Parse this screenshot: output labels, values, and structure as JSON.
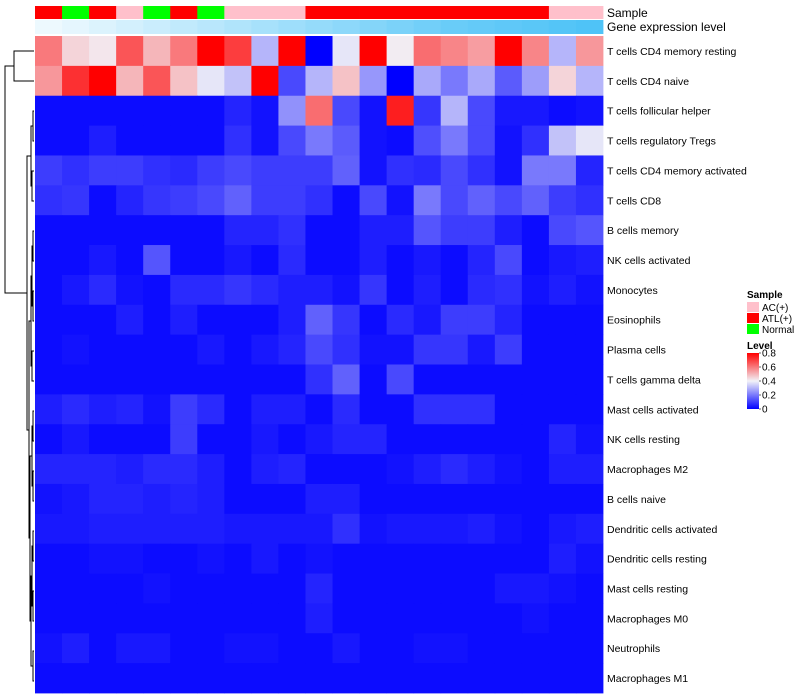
{
  "chart_data": {
    "type": "heatmap",
    "title": "",
    "annotations": [
      {
        "label": "Sample",
        "values": [
          "ATL(+)",
          "Normal",
          "ATL(+)",
          "AC(+)",
          "Normal",
          "ATL(+)",
          "Normal",
          "AC(+)",
          "AC(+)",
          "AC(+)",
          "ATL(+)",
          "ATL(+)",
          "ATL(+)",
          "ATL(+)",
          "ATL(+)",
          "ATL(+)",
          "ATL(+)",
          "ATL(+)",
          "ATL(+)",
          "AC(+)",
          "AC(+)"
        ]
      },
      {
        "label": "Gene expression level",
        "values": [
          0.1,
          0.15,
          0.2,
          0.25,
          0.3,
          0.35,
          0.4,
          0.45,
          0.5,
          0.55,
          0.6,
          0.65,
          0.7,
          0.75,
          0.8,
          0.85,
          0.88,
          0.91,
          0.94,
          0.97,
          1.0
        ]
      }
    ],
    "rows": [
      "T cells CD4 memory resting",
      "T cells CD4 naive",
      "T cells follicular helper",
      "T cells regulatory  Tregs",
      "T cells CD4 memory activated",
      "T cells CD8",
      "B cells memory",
      "NK cells activated",
      "Monocytes",
      "Eosinophils",
      "Plasma cells",
      "T cells gamma delta",
      "Mast cells activated",
      "NK cells resting",
      "Macrophages M2",
      "B cells naive",
      "Dendritic cells activated",
      "Dendritic cells resting",
      "Mast cells resting",
      "Macrophages M0",
      "Neutrophils",
      "Macrophages M1"
    ],
    "values": [
      [
        0.6,
        0.45,
        0.42,
        0.66,
        0.5,
        0.6,
        0.8,
        0.7,
        0.3,
        0.8,
        0.0,
        0.38,
        0.8,
        0.41,
        0.62,
        0.58,
        0.54,
        0.8,
        0.58,
        0.3,
        0.55
      ],
      [
        0.55,
        0.72,
        0.8,
        0.5,
        0.66,
        0.48,
        0.38,
        0.32,
        0.8,
        0.12,
        0.3,
        0.48,
        0.25,
        0.0,
        0.28,
        0.2,
        0.28,
        0.15,
        0.26,
        0.45,
        0.3
      ],
      [
        0.02,
        0.02,
        0.02,
        0.02,
        0.02,
        0.02,
        0.02,
        0.06,
        0.03,
        0.24,
        0.62,
        0.12,
        0.03,
        0.75,
        0.09,
        0.3,
        0.12,
        0.04,
        0.04,
        0.02,
        0.03
      ],
      [
        0.02,
        0.02,
        0.05,
        0.02,
        0.02,
        0.02,
        0.02,
        0.08,
        0.03,
        0.12,
        0.2,
        0.15,
        0.03,
        0.02,
        0.13,
        0.2,
        0.12,
        0.03,
        0.08,
        0.32,
        0.38
      ],
      [
        0.1,
        0.08,
        0.1,
        0.1,
        0.08,
        0.07,
        0.1,
        0.12,
        0.1,
        0.1,
        0.1,
        0.16,
        0.03,
        0.08,
        0.07,
        0.12,
        0.08,
        0.03,
        0.2,
        0.2,
        0.06
      ],
      [
        0.08,
        0.09,
        0.02,
        0.06,
        0.09,
        0.1,
        0.12,
        0.16,
        0.1,
        0.1,
        0.08,
        0.02,
        0.12,
        0.03,
        0.2,
        0.12,
        0.16,
        0.12,
        0.16,
        0.1,
        0.08
      ],
      [
        0.02,
        0.02,
        0.02,
        0.02,
        0.02,
        0.02,
        0.02,
        0.06,
        0.06,
        0.08,
        0.02,
        0.02,
        0.05,
        0.05,
        0.14,
        0.1,
        0.1,
        0.05,
        0.02,
        0.12,
        0.14
      ],
      [
        0.02,
        0.02,
        0.04,
        0.02,
        0.14,
        0.02,
        0.02,
        0.04,
        0.02,
        0.07,
        0.02,
        0.02,
        0.05,
        0.02,
        0.04,
        0.02,
        0.06,
        0.12,
        0.02,
        0.04,
        0.05
      ],
      [
        0.02,
        0.04,
        0.07,
        0.03,
        0.02,
        0.07,
        0.07,
        0.09,
        0.07,
        0.05,
        0.05,
        0.03,
        0.09,
        0.02,
        0.05,
        0.02,
        0.07,
        0.08,
        0.03,
        0.05,
        0.03
      ],
      [
        0.02,
        0.02,
        0.02,
        0.05,
        0.02,
        0.05,
        0.02,
        0.02,
        0.02,
        0.05,
        0.16,
        0.09,
        0.02,
        0.07,
        0.04,
        0.1,
        0.1,
        0.06,
        0.02,
        0.02,
        0.02
      ],
      [
        0.02,
        0.03,
        0.02,
        0.02,
        0.02,
        0.02,
        0.04,
        0.02,
        0.04,
        0.06,
        0.12,
        0.08,
        0.03,
        0.03,
        0.09,
        0.09,
        0.04,
        0.1,
        0.02,
        0.02,
        0.02
      ],
      [
        0.02,
        0.02,
        0.02,
        0.02,
        0.02,
        0.02,
        0.02,
        0.02,
        0.02,
        0.02,
        0.08,
        0.16,
        0.02,
        0.12,
        0.02,
        0.02,
        0.02,
        0.02,
        0.02,
        0.02,
        0.02
      ],
      [
        0.05,
        0.07,
        0.05,
        0.06,
        0.03,
        0.1,
        0.07,
        0.02,
        0.05,
        0.05,
        0.02,
        0.07,
        0.02,
        0.02,
        0.08,
        0.08,
        0.08,
        0.02,
        0.02,
        0.02,
        0.02
      ],
      [
        0.02,
        0.04,
        0.02,
        0.02,
        0.02,
        0.1,
        0.02,
        0.02,
        0.04,
        0.02,
        0.04,
        0.06,
        0.06,
        0.02,
        0.02,
        0.02,
        0.02,
        0.02,
        0.02,
        0.06,
        0.03
      ],
      [
        0.06,
        0.06,
        0.06,
        0.05,
        0.07,
        0.07,
        0.05,
        0.02,
        0.05,
        0.06,
        0.02,
        0.02,
        0.02,
        0.03,
        0.05,
        0.07,
        0.05,
        0.03,
        0.02,
        0.05,
        0.05
      ],
      [
        0.03,
        0.04,
        0.06,
        0.06,
        0.05,
        0.06,
        0.05,
        0.02,
        0.02,
        0.02,
        0.05,
        0.05,
        0.02,
        0.02,
        0.02,
        0.02,
        0.02,
        0.02,
        0.02,
        0.02,
        0.02
      ],
      [
        0.04,
        0.04,
        0.05,
        0.05,
        0.05,
        0.05,
        0.05,
        0.04,
        0.04,
        0.04,
        0.04,
        0.08,
        0.03,
        0.04,
        0.04,
        0.04,
        0.05,
        0.03,
        0.02,
        0.04,
        0.05
      ],
      [
        0.02,
        0.02,
        0.03,
        0.03,
        0.02,
        0.02,
        0.03,
        0.02,
        0.04,
        0.02,
        0.03,
        0.02,
        0.02,
        0.02,
        0.02,
        0.02,
        0.02,
        0.02,
        0.02,
        0.05,
        0.03
      ],
      [
        0.02,
        0.02,
        0.02,
        0.02,
        0.03,
        0.02,
        0.02,
        0.02,
        0.02,
        0.02,
        0.06,
        0.02,
        0.02,
        0.02,
        0.02,
        0.02,
        0.02,
        0.04,
        0.04,
        0.03,
        0.02
      ],
      [
        0.02,
        0.02,
        0.02,
        0.02,
        0.02,
        0.02,
        0.02,
        0.02,
        0.02,
        0.02,
        0.05,
        0.02,
        0.02,
        0.02,
        0.02,
        0.02,
        0.02,
        0.02,
        0.03,
        0.02,
        0.02
      ],
      [
        0.03,
        0.05,
        0.02,
        0.04,
        0.04,
        0.02,
        0.02,
        0.03,
        0.03,
        0.02,
        0.02,
        0.04,
        0.02,
        0.02,
        0.03,
        0.03,
        0.02,
        0.02,
        0.02,
        0.02,
        0.02
      ],
      [
        0.02,
        0.02,
        0.02,
        0.02,
        0.02,
        0.02,
        0.02,
        0.02,
        0.02,
        0.02,
        0.02,
        0.02,
        0.02,
        0.02,
        0.02,
        0.02,
        0.02,
        0.02,
        0.02,
        0.02,
        0.02
      ]
    ],
    "color_scale": {
      "stops": [
        0,
        0.4,
        0.8
      ],
      "colors": [
        "#0000ff",
        "#f2f2f8",
        "#ff0000"
      ]
    },
    "legend": {
      "sample_title": "Sample",
      "sample_entries": [
        {
          "label": "AC(+)",
          "color": "#ffc0cb"
        },
        {
          "label": "ATL(+)",
          "color": "#ff0000"
        },
        {
          "label": "Normal",
          "color": "#00ff00"
        }
      ],
      "level_title": "Level",
      "level_ticks": [
        "0.8",
        "0.6",
        "0.4",
        "0.2",
        "0"
      ],
      "level_tick_values": [
        0.8,
        0.6,
        0.4,
        0.2,
        0
      ]
    },
    "expr_colors": {
      "low": "#ffffff",
      "high": "#4fc3f7"
    },
    "dendrogram": "row clustering tree (left)"
  }
}
